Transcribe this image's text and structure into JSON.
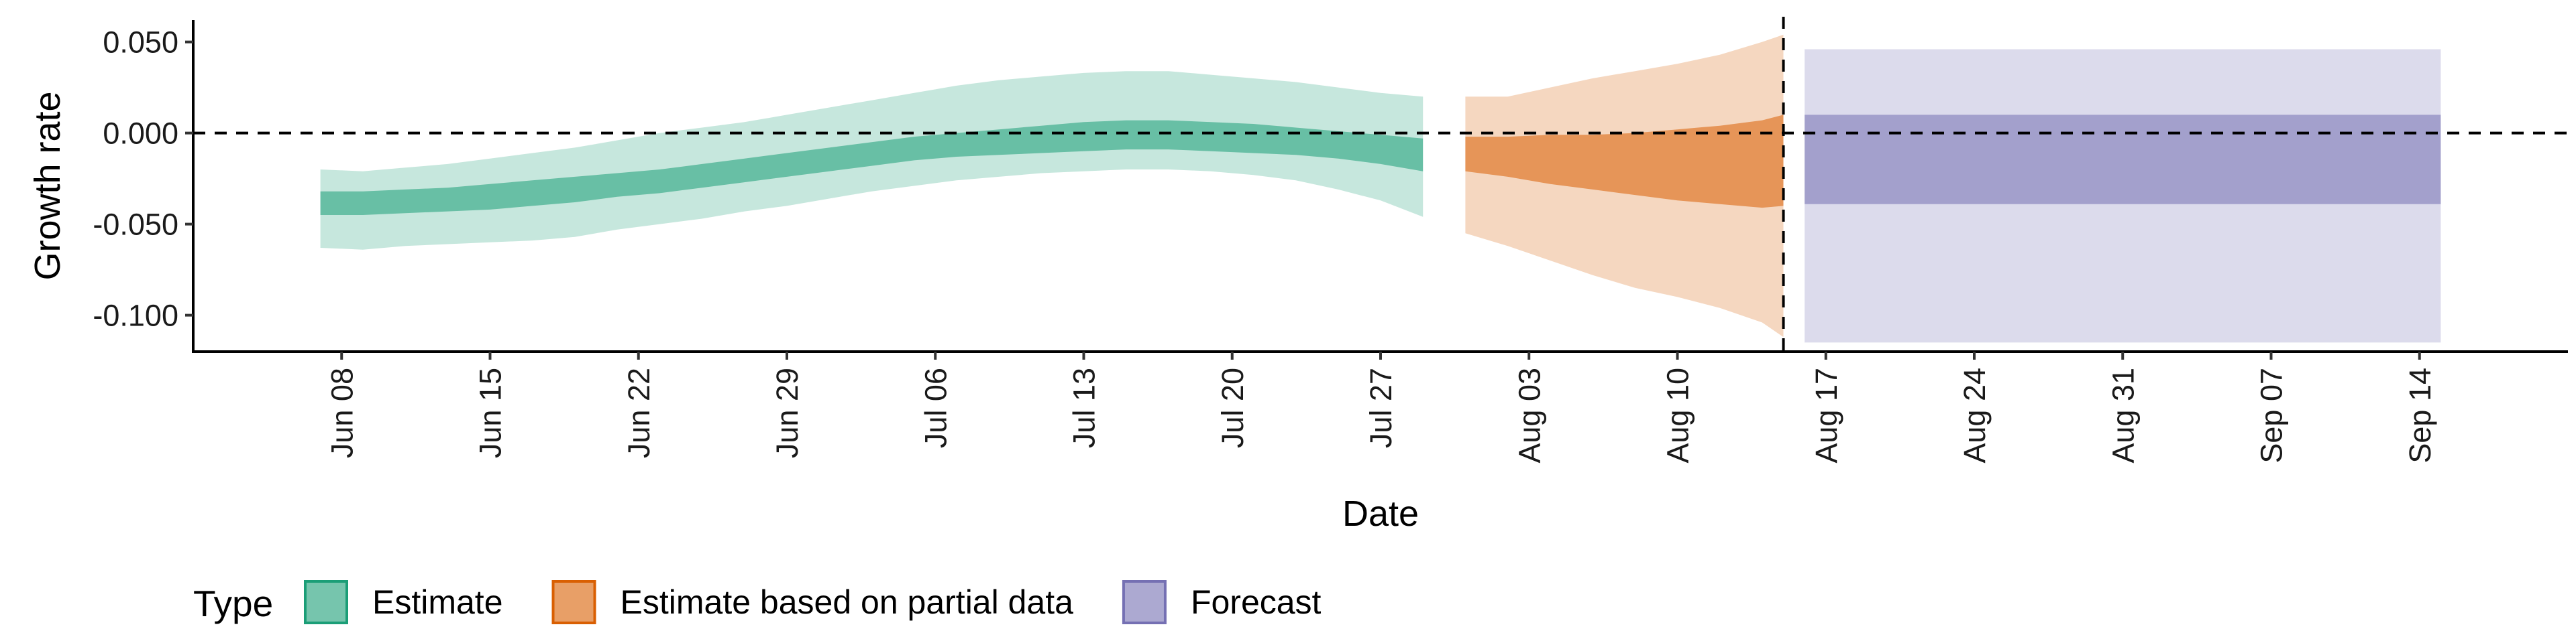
{
  "chart_data": {
    "type": "area",
    "xlabel": "Date",
    "ylabel": "Growth rate",
    "x_range": [
      "2020-06-01",
      "2020-09-21"
    ],
    "ylim": [
      -0.12,
      0.062
    ],
    "y_ticks": [
      0.05,
      0.0,
      -0.05,
      -0.1
    ],
    "y_tick_labels": [
      "0.050",
      "0.000",
      "-0.050",
      "-0.100"
    ],
    "x_ticks": [
      "2020-06-08",
      "2020-06-15",
      "2020-06-22",
      "2020-06-29",
      "2020-07-06",
      "2020-07-13",
      "2020-07-20",
      "2020-07-27",
      "2020-08-03",
      "2020-08-10",
      "2020-08-17",
      "2020-08-24",
      "2020-08-31",
      "2020-09-07",
      "2020-09-14"
    ],
    "x_tick_labels": [
      "Jun 08",
      "Jun 15",
      "Jun 22",
      "Jun 29",
      "Jul 06",
      "Jul 13",
      "Jul 20",
      "Jul 27",
      "Aug 03",
      "Aug 10",
      "Aug 17",
      "Aug 24",
      "Aug 31",
      "Sep 07",
      "Sep 14"
    ],
    "reference_lines": {
      "horizontal_y": 0.0,
      "vertical_x": "2020-08-15",
      "style": "dashed"
    },
    "legend": {
      "title": "Type",
      "position": "bottom-left"
    },
    "series": [
      {
        "name": "Estimate",
        "color": "#1b9e77",
        "dates": [
          "2020-06-07",
          "2020-06-09",
          "2020-06-11",
          "2020-06-13",
          "2020-06-15",
          "2020-06-17",
          "2020-06-19",
          "2020-06-21",
          "2020-06-23",
          "2020-06-25",
          "2020-06-27",
          "2020-06-29",
          "2020-07-01",
          "2020-07-03",
          "2020-07-05",
          "2020-07-07",
          "2020-07-09",
          "2020-07-11",
          "2020-07-13",
          "2020-07-15",
          "2020-07-17",
          "2020-07-19",
          "2020-07-21",
          "2020-07-23",
          "2020-07-25",
          "2020-07-27",
          "2020-07-29"
        ],
        "lower_90": [
          -0.063,
          -0.064,
          -0.062,
          -0.061,
          -0.06,
          -0.059,
          -0.057,
          -0.053,
          -0.05,
          -0.047,
          -0.043,
          -0.04,
          -0.036,
          -0.032,
          -0.029,
          -0.026,
          -0.024,
          -0.022,
          -0.021,
          -0.02,
          -0.02,
          -0.021,
          -0.023,
          -0.026,
          -0.031,
          -0.037,
          -0.046
        ],
        "lower_50": [
          -0.045,
          -0.045,
          -0.044,
          -0.043,
          -0.042,
          -0.04,
          -0.038,
          -0.035,
          -0.033,
          -0.03,
          -0.027,
          -0.024,
          -0.021,
          -0.018,
          -0.015,
          -0.013,
          -0.012,
          -0.011,
          -0.01,
          -0.009,
          -0.009,
          -0.01,
          -0.011,
          -0.012,
          -0.014,
          -0.017,
          -0.021
        ],
        "upper_50": [
          -0.032,
          -0.032,
          -0.031,
          -0.03,
          -0.028,
          -0.026,
          -0.024,
          -0.022,
          -0.02,
          -0.017,
          -0.014,
          -0.011,
          -0.008,
          -0.005,
          -0.002,
          0.0,
          0.002,
          0.004,
          0.006,
          0.007,
          0.007,
          0.006,
          0.005,
          0.003,
          0.001,
          -0.001,
          -0.003
        ],
        "upper_90": [
          -0.02,
          -0.021,
          -0.019,
          -0.017,
          -0.014,
          -0.011,
          -0.008,
          -0.004,
          0.0,
          0.003,
          0.006,
          0.01,
          0.014,
          0.018,
          0.022,
          0.026,
          0.029,
          0.031,
          0.033,
          0.034,
          0.034,
          0.032,
          0.03,
          0.028,
          0.025,
          0.022,
          0.02
        ]
      },
      {
        "name": "Estimate based on partial data",
        "color": "#d95f02",
        "dates": [
          "2020-07-31",
          "2020-08-02",
          "2020-08-04",
          "2020-08-06",
          "2020-08-08",
          "2020-08-10",
          "2020-08-12",
          "2020-08-14",
          "2020-08-15"
        ],
        "lower_90": [
          -0.055,
          -0.062,
          -0.07,
          -0.078,
          -0.085,
          -0.09,
          -0.096,
          -0.104,
          -0.112
        ],
        "lower_50": [
          -0.021,
          -0.024,
          -0.028,
          -0.031,
          -0.034,
          -0.037,
          -0.039,
          -0.041,
          -0.04
        ],
        "upper_50": [
          -0.002,
          -0.002,
          -0.001,
          -0.001,
          0.0,
          0.002,
          0.004,
          0.007,
          0.01
        ],
        "upper_90": [
          0.02,
          0.02,
          0.025,
          0.03,
          0.034,
          0.038,
          0.043,
          0.05,
          0.054
        ]
      },
      {
        "name": "Forecast",
        "color": "#7570b3",
        "dates": [
          "2020-08-16",
          "2020-09-15"
        ],
        "lower_90": [
          -0.115,
          -0.115
        ],
        "lower_50": [
          -0.039,
          -0.039
        ],
        "upper_50": [
          0.01,
          0.01
        ],
        "upper_90": [
          0.046,
          0.046
        ]
      }
    ]
  }
}
